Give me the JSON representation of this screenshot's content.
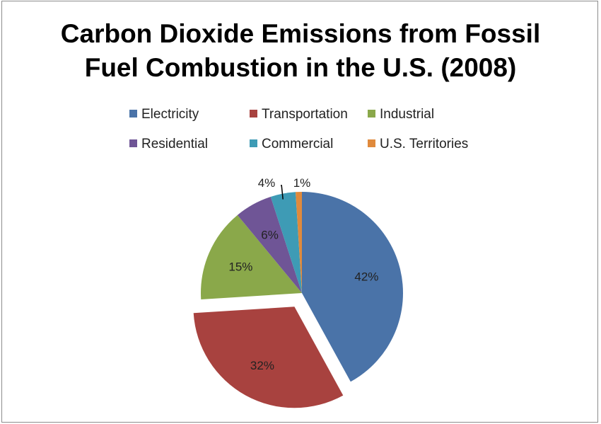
{
  "chart_data": {
    "type": "pie",
    "title_lines": [
      "Carbon Dioxide Emissions from Fossil",
      "Fuel Combustion in the U.S. (2008)"
    ],
    "legend_placement": "top",
    "slices": [
      {
        "name": "Electricity",
        "value": 42,
        "label": "42%",
        "color": "#4a73a8",
        "exploded": false
      },
      {
        "name": "Transportation",
        "value": 32,
        "label": "32%",
        "color": "#a8423f",
        "exploded": true
      },
      {
        "name": "Industrial",
        "value": 15,
        "label": "15%",
        "color": "#8aa84a",
        "exploded": false
      },
      {
        "name": "Residential",
        "value": 6,
        "label": "6%",
        "color": "#6f5596",
        "exploded": false
      },
      {
        "name": "Commercial",
        "value": 4,
        "label": "4%",
        "color": "#3e9bb5",
        "exploded": false
      },
      {
        "name": "U.S. Territories",
        "value": 1,
        "label": "1%",
        "color": "#e08a3c",
        "exploded": false
      }
    ]
  }
}
